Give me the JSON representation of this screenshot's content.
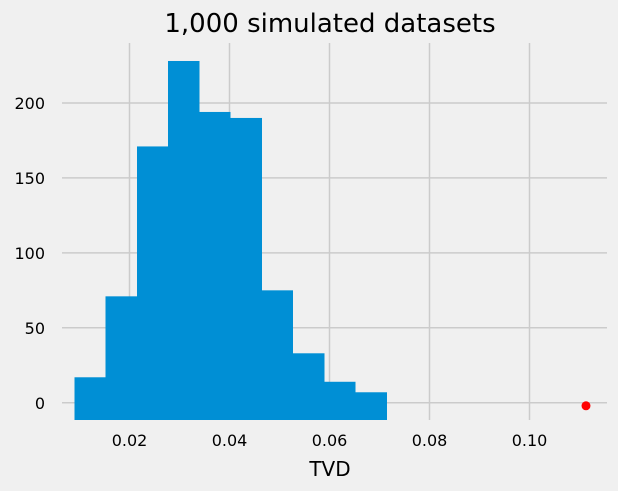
{
  "chart_data": {
    "type": "bar",
    "title": "1,000 simulated datasets",
    "xlabel": "TVD",
    "ylabel": "",
    "xlim": [
      0.0065,
      0.1155
    ],
    "ylim": [
      -11.5,
      240
    ],
    "xticks": [
      0.02,
      0.04,
      0.06,
      0.08,
      0.1
    ],
    "xtick_labels": [
      "0.02",
      "0.04",
      "0.06",
      "0.08",
      "0.10"
    ],
    "yticks": [
      0,
      50,
      100,
      150,
      200
    ],
    "ytick_labels": [
      "0",
      "50",
      "100",
      "150",
      "200"
    ],
    "grid": true,
    "bins": [
      {
        "start": 0.009,
        "end": 0.0152,
        "count": 17
      },
      {
        "start": 0.0152,
        "end": 0.0215,
        "count": 71
      },
      {
        "start": 0.0215,
        "end": 0.0277,
        "count": 171
      },
      {
        "start": 0.0277,
        "end": 0.034,
        "count": 228
      },
      {
        "start": 0.034,
        "end": 0.0402,
        "count": 194
      },
      {
        "start": 0.0402,
        "end": 0.0465,
        "count": 190
      },
      {
        "start": 0.0465,
        "end": 0.0527,
        "count": 75
      },
      {
        "start": 0.0527,
        "end": 0.059,
        "count": 33
      },
      {
        "start": 0.059,
        "end": 0.0652,
        "count": 14
      },
      {
        "start": 0.0652,
        "end": 0.0715,
        "count": 7
      }
    ],
    "marker": {
      "x": 0.1113,
      "y": -2
    },
    "colors": {
      "bar": "#008fd5",
      "marker": "#ff0000",
      "grid": "#cbcbcb",
      "background": "#f0f0f0"
    }
  }
}
